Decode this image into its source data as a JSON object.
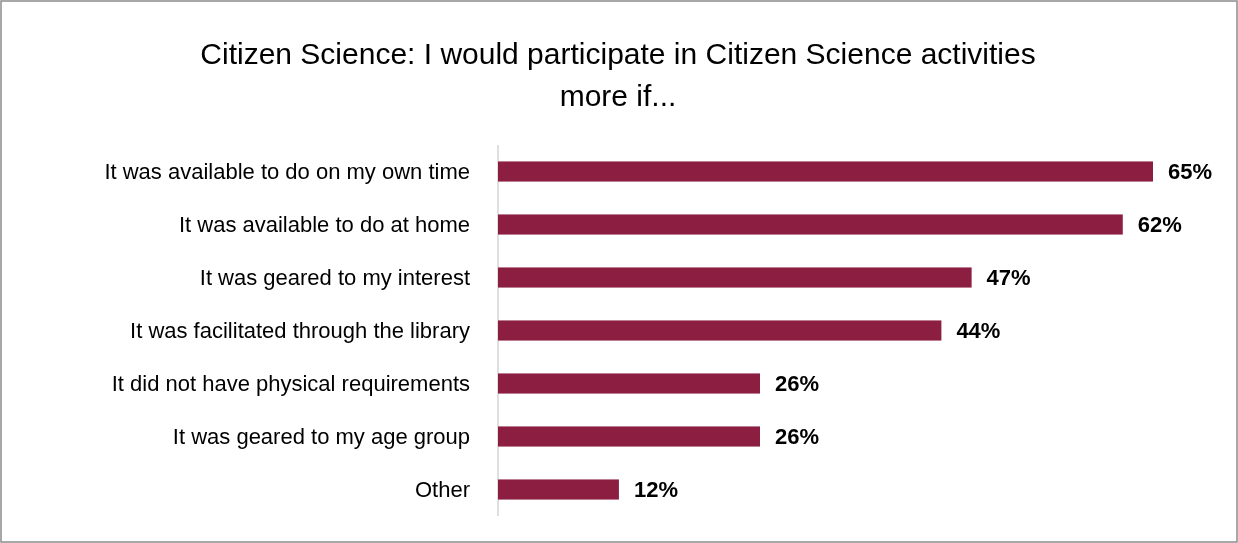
{
  "chart_data": {
    "type": "bar",
    "orientation": "horizontal",
    "title": "Citizen Science: I would participate in Citizen Science activities more if...",
    "categories": [
      "It was available to do on my own time",
      "It was available to do at home",
      "It was geared to my interest",
      "It was facilitated through the library",
      "It did not have physical requirements",
      "It was geared to my age group",
      "Other"
    ],
    "values": [
      65,
      62,
      47,
      44,
      26,
      26,
      12
    ],
    "value_labels": [
      "65%",
      "62%",
      "47%",
      "44%",
      "26%",
      "26%",
      "12%"
    ],
    "color": "#8b1e41"
  }
}
